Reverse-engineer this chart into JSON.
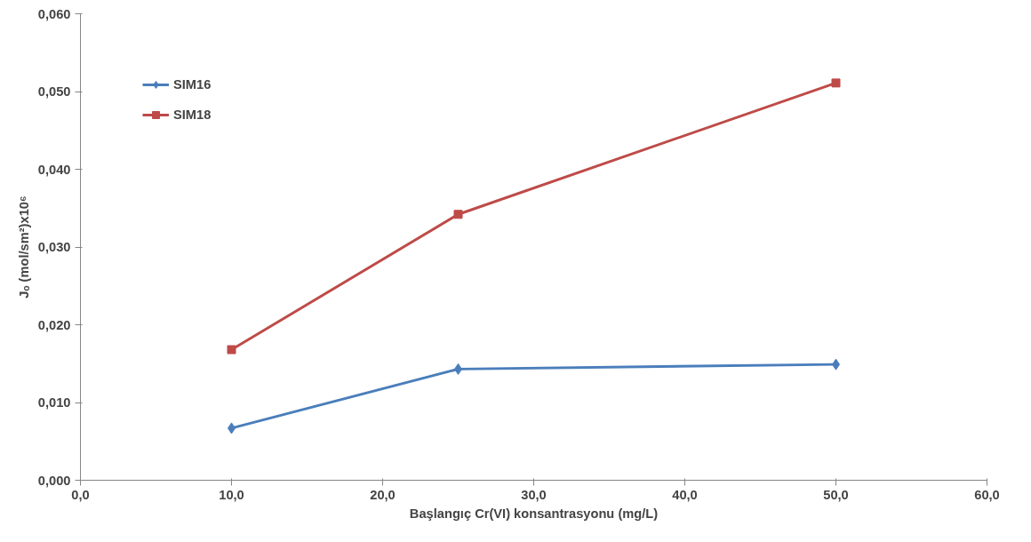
{
  "chart_data": {
    "type": "line",
    "xlabel": "Başlangıç Cr(VI) konsantrasyonu (mg/L)",
    "ylabel": "Jₒ (mol/sm²)x10⁶",
    "x": [
      10,
      25,
      50
    ],
    "series": [
      {
        "name": "SIM16",
        "color": "#4a7ebb",
        "values": [
          0.0067,
          0.0143,
          0.0149
        ],
        "marker": "diamond"
      },
      {
        "name": "SIM18",
        "color": "#be4b48",
        "values": [
          0.0168,
          0.0342,
          0.0511
        ],
        "marker": "square"
      }
    ],
    "xlim": [
      0,
      60
    ],
    "xticks": [
      {
        "value": 0,
        "label": "0,0"
      },
      {
        "value": 10,
        "label": "10,0"
      },
      {
        "value": 20,
        "label": "20,0"
      },
      {
        "value": 30,
        "label": "30,0"
      },
      {
        "value": 40,
        "label": "40,0"
      },
      {
        "value": 50,
        "label": "50,0"
      },
      {
        "value": 60,
        "label": "60,0"
      }
    ],
    "ylim": [
      0,
      0.06
    ],
    "yticks": [
      {
        "value": 0,
        "label": "0,000"
      },
      {
        "value": 0.01,
        "label": "0,010"
      },
      {
        "value": 0.02,
        "label": "0,020"
      },
      {
        "value": 0.03,
        "label": "0,030"
      },
      {
        "value": 0.04,
        "label": "0,040"
      },
      {
        "value": 0.05,
        "label": "0,050"
      },
      {
        "value": 0.06,
        "label": "0,060"
      }
    ],
    "grid": false,
    "legend": "top left",
    "line_style": "solid"
  }
}
